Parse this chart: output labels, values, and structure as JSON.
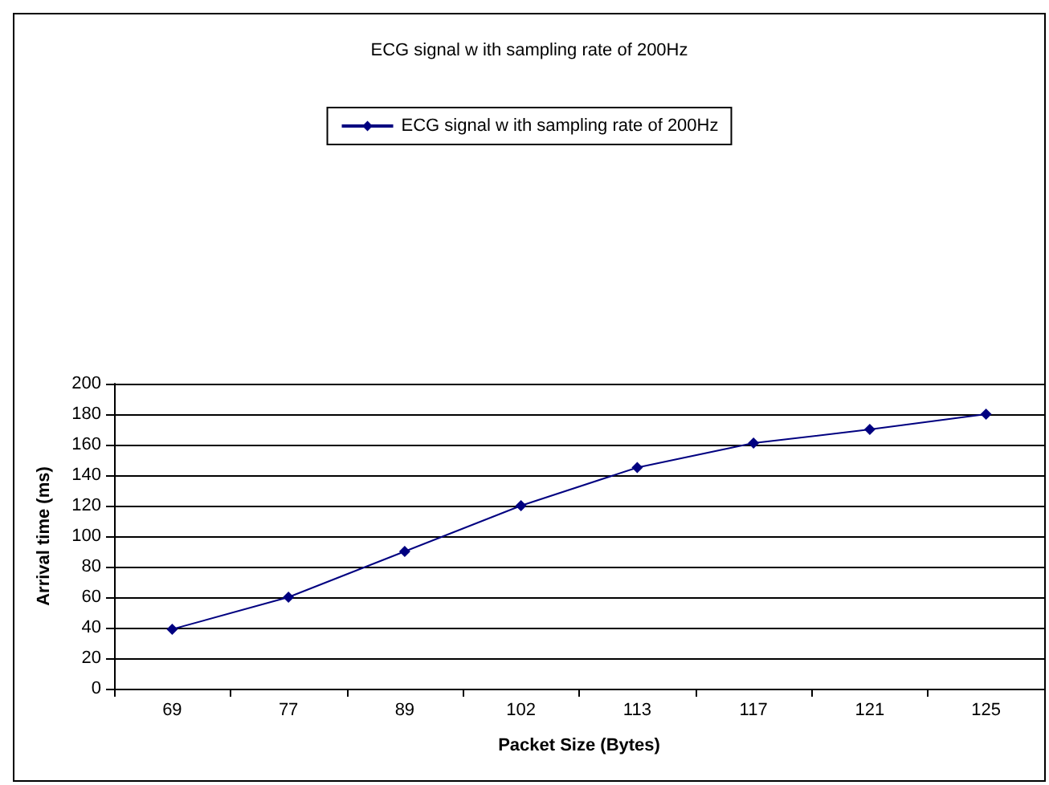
{
  "chart_data": {
    "type": "line",
    "title": "ECG signal w ith sampling rate of 200Hz",
    "xlabel": "Packet Size (Bytes)",
    "ylabel": "Arrival time (ms)",
    "categories": [
      "69",
      "77",
      "89",
      "102",
      "113",
      "117",
      "121",
      "125"
    ],
    "series": [
      {
        "name": "ECG signal w ith sampling rate of 200Hz",
        "color": "#000080",
        "values": [
          39,
          60,
          90,
          120,
          145,
          161,
          170,
          180
        ]
      }
    ],
    "ylim": [
      0,
      200
    ],
    "yticks": [
      0,
      20,
      40,
      60,
      80,
      100,
      120,
      140,
      160,
      180,
      200
    ],
    "grid": "y",
    "legend": "top",
    "marker": "diamond",
    "line_style": "solid"
  }
}
